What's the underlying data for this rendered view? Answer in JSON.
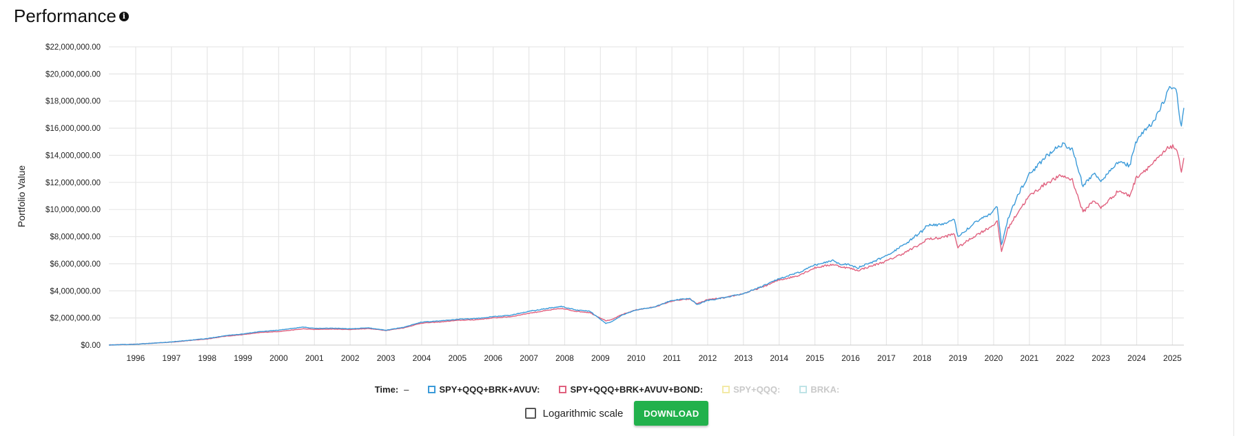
{
  "header": {
    "title": "Performance",
    "info_icon": "info-icon"
  },
  "legend": {
    "time_label": "Time:",
    "time_value": "–",
    "series_labels": [
      "SPY+QQQ+BRK+AVUV:",
      "SPY+QQQ+BRK+AVUV+BOND:",
      "SPY+QQQ:",
      "BRKA:"
    ]
  },
  "controls": {
    "log_label": "Logarithmic scale",
    "download_label": "DOWNLOAD",
    "log_checked": false
  },
  "chart_data": {
    "type": "line",
    "title": "",
    "xlabel": "",
    "ylabel": "Portfolio Value",
    "ylim": [
      0,
      22000000
    ],
    "xlim": [
      1995.25,
      2025.32
    ],
    "grid": true,
    "legend_position": "bottom-center",
    "y_ticks": [
      "$0.00",
      "$2,000,000.00",
      "$4,000,000.00",
      "$6,000,000.00",
      "$8,000,000.00",
      "$10,000,000.00",
      "$12,000,000.00",
      "$14,000,000.00",
      "$16,000,000.00",
      "$18,000,000.00",
      "$20,000,000.00",
      "$22,000,000.00"
    ],
    "x_ticks": [
      "1996",
      "1997",
      "1998",
      "1999",
      "2000",
      "2001",
      "2002",
      "2003",
      "2004",
      "2005",
      "2006",
      "2007",
      "2008",
      "2009",
      "2010",
      "2011",
      "2012",
      "2013",
      "2014",
      "2015",
      "2016",
      "2017",
      "2018",
      "2019",
      "2020",
      "2021",
      "2022",
      "2023",
      "2024",
      "2025"
    ],
    "series": [
      {
        "name": "SPY+QQQ+BRK+AVUV",
        "color": "#3a9ad9",
        "visible": true,
        "x": [
          1995.25,
          1996.0,
          1997.0,
          1998.0,
          1998.5,
          1999.0,
          1999.5,
          2000.0,
          2000.7,
          2001.0,
          2001.5,
          2002.0,
          2002.5,
          2003.0,
          2003.5,
          2004.0,
          2004.5,
          2005.0,
          2005.5,
          2006.0,
          2006.5,
          2007.0,
          2007.5,
          2007.9,
          2008.3,
          2008.7,
          2009.15,
          2009.3,
          2009.6,
          2010.0,
          2010.5,
          2011.0,
          2011.5,
          2011.7,
          2012.0,
          2012.5,
          2013.0,
          2013.5,
          2014.0,
          2014.5,
          2015.0,
          2015.5,
          2015.7,
          2016.0,
          2016.2,
          2016.6,
          2017.0,
          2017.5,
          2018.0,
          2018.1,
          2018.5,
          2018.9,
          2019.0,
          2019.5,
          2019.9,
          2020.1,
          2020.22,
          2020.4,
          2020.7,
          2021.0,
          2021.5,
          2021.9,
          2022.2,
          2022.5,
          2022.8,
          2023.0,
          2023.5,
          2023.8,
          2024.0,
          2024.5,
          2024.95,
          2025.1,
          2025.25,
          2025.32
        ],
        "y": [
          10000,
          60000,
          230000,
          480000,
          700000,
          820000,
          1000000,
          1100000,
          1330000,
          1230000,
          1250000,
          1200000,
          1270000,
          1100000,
          1320000,
          1700000,
          1780000,
          1900000,
          1950000,
          2100000,
          2200000,
          2500000,
          2700000,
          2850000,
          2600000,
          2500000,
          1600000,
          1700000,
          2200000,
          2600000,
          2800000,
          3300000,
          3450000,
          3000000,
          3300000,
          3500000,
          3800000,
          4300000,
          4900000,
          5300000,
          5900000,
          6250000,
          6000000,
          5900000,
          5700000,
          6100000,
          6600000,
          7400000,
          8400000,
          8800000,
          8900000,
          9200000,
          8000000,
          9100000,
          9700000,
          10200000,
          7400000,
          9300000,
          11200000,
          12600000,
          14000000,
          14800000,
          14500000,
          11700000,
          12700000,
          12100000,
          13600000,
          13200000,
          15100000,
          16600000,
          19000000,
          18900000,
          16000000,
          17500000
        ]
      },
      {
        "name": "SPY+QQQ+BRK+AVUV+BOND",
        "color": "#e0607e",
        "visible": true,
        "x": [
          1995.25,
          1996.0,
          1997.0,
          1998.0,
          1998.5,
          1999.0,
          1999.5,
          2000.0,
          2000.7,
          2001.0,
          2001.5,
          2002.0,
          2002.5,
          2003.0,
          2003.5,
          2004.0,
          2004.5,
          2005.0,
          2005.5,
          2006.0,
          2006.5,
          2007.0,
          2007.5,
          2007.9,
          2008.3,
          2008.7,
          2009.15,
          2009.3,
          2009.6,
          2010.0,
          2010.5,
          2011.0,
          2011.5,
          2011.7,
          2012.0,
          2012.5,
          2013.0,
          2013.5,
          2014.0,
          2014.5,
          2015.0,
          2015.5,
          2015.7,
          2016.0,
          2016.2,
          2016.6,
          2017.0,
          2017.5,
          2018.0,
          2018.1,
          2018.5,
          2018.9,
          2019.0,
          2019.5,
          2019.9,
          2020.1,
          2020.22,
          2020.4,
          2020.7,
          2021.0,
          2021.5,
          2021.9,
          2022.2,
          2022.5,
          2022.8,
          2023.0,
          2023.5,
          2023.8,
          2024.0,
          2024.5,
          2024.95,
          2025.1,
          2025.25,
          2025.32
        ],
        "y": [
          10000,
          60000,
          220000,
          450000,
          650000,
          770000,
          930000,
          1000000,
          1200000,
          1150000,
          1180000,
          1150000,
          1220000,
          1080000,
          1270000,
          1620000,
          1700000,
          1820000,
          1870000,
          2000000,
          2100000,
          2350000,
          2550000,
          2700000,
          2500000,
          2400000,
          1800000,
          1850000,
          2250000,
          2600000,
          2800000,
          3250000,
          3400000,
          3050000,
          3350000,
          3500000,
          3800000,
          4250000,
          4800000,
          5100000,
          5700000,
          5950000,
          5800000,
          5650000,
          5500000,
          5850000,
          6200000,
          6800000,
          7500000,
          7800000,
          7900000,
          8200000,
          7200000,
          8100000,
          8700000,
          9100000,
          6900000,
          8600000,
          9900000,
          11000000,
          12000000,
          12500000,
          12200000,
          9800000,
          10700000,
          10100000,
          11400000,
          11000000,
          12400000,
          13500000,
          14700000,
          14500000,
          12900000,
          13800000
        ]
      },
      {
        "name": "SPY+QQQ",
        "color": "#f3eaa6",
        "visible": false
      },
      {
        "name": "BRKA",
        "color": "#bfe3e6",
        "visible": false
      }
    ]
  }
}
